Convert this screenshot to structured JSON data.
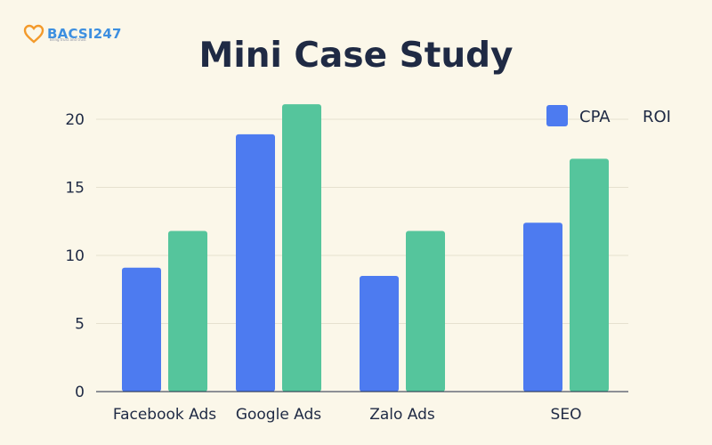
{
  "brand": {
    "logo_text": "BACSI247",
    "logo_tagline": "Bring trust and trust"
  },
  "chart_data": {
    "type": "bar",
    "title": "Mini Case Study",
    "xlabel": "",
    "ylabel": "",
    "categories": [
      "Facebook Ads",
      "Google Ads",
      "Zalo Ads",
      "SEO"
    ],
    "series": [
      {
        "name": "CPA",
        "color": "#4d7bf0",
        "values": [
          9.1,
          18.9,
          8.5,
          12.4
        ]
      },
      {
        "name": "ROI",
        "color": "#55c59c",
        "values": [
          11.8,
          21.1,
          11.8,
          17.1
        ]
      }
    ],
    "ylim": [
      0,
      20
    ],
    "yticks": [
      0,
      5,
      10,
      15,
      20
    ],
    "grid": true,
    "legend": "top-right"
  }
}
